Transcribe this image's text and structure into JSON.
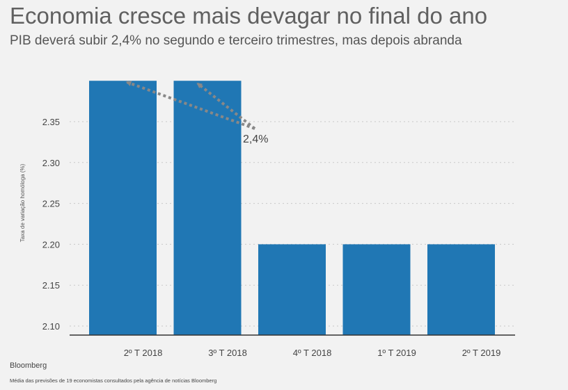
{
  "title": "Economia cresce mais devagar no final do ano",
  "subtitle": "PIB deverá subir 2,4% no segundo e terceiro trimestres, mas depois abranda",
  "source": "Bloomberg",
  "note": "Média das previsões de 19 economistas consultados pela agência de notícias Bloomberg",
  "colors": {
    "bar": "#2077b4",
    "grid": "#c8c8c8",
    "arrow": "#888888",
    "background": "#f2f2f2"
  },
  "chart_data": {
    "type": "bar",
    "categories": [
      "2º T 2018",
      "3º T 2018",
      "4º T 2018",
      "1º T 2019",
      "2º T 2019"
    ],
    "values": [
      2.4,
      2.4,
      2.2,
      2.2,
      2.2
    ],
    "ylabel": "Taxa de variação homóloga (%)",
    "yticks": [
      "2.10",
      "2.15",
      "2.20",
      "2.25",
      "2.30",
      "2.35"
    ],
    "ylim": [
      2.095,
      2.4
    ],
    "grid": true,
    "annotation": {
      "text": "2,4%",
      "targets": [
        "2º T 2018",
        "3º T 2018"
      ]
    }
  }
}
